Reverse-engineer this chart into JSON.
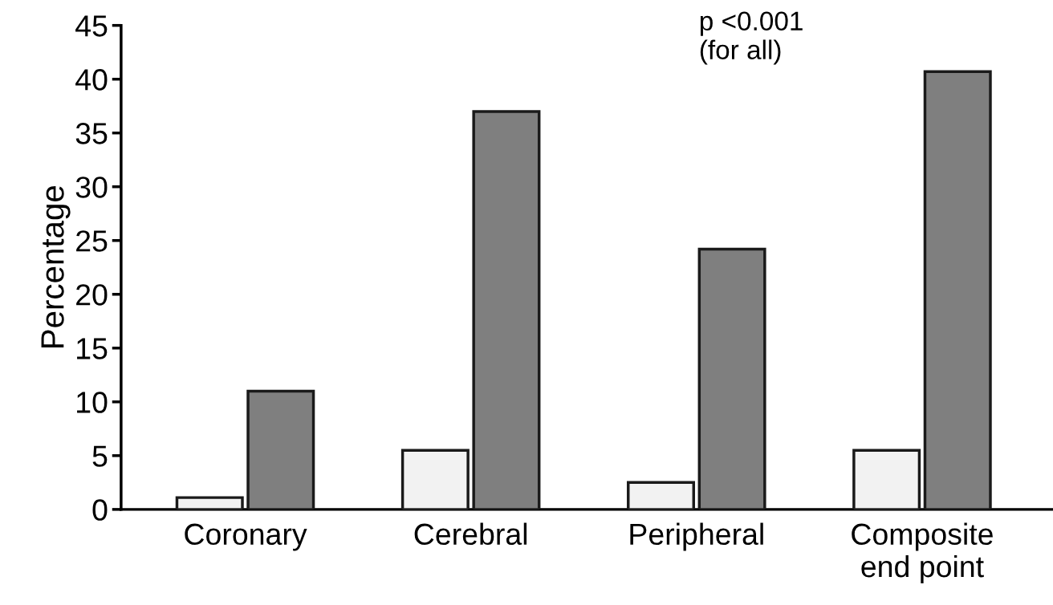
{
  "chart_data": {
    "type": "bar",
    "ylabel": "Percentage",
    "categories": [
      "Coronary",
      "Cerebral",
      "Peripheral",
      "Composite\nend point"
    ],
    "series": [
      {
        "color": "#f2f2f2",
        "values": [
          1.1,
          5.5,
          2.5,
          5.5
        ]
      },
      {
        "color": "#7f7f7f",
        "values": [
          11,
          37,
          24.2,
          40.7
        ]
      }
    ],
    "ylim": [
      0,
      45
    ],
    "yticks": [
      0,
      5,
      10,
      15,
      20,
      25,
      30,
      35,
      40,
      45
    ],
    "grid": false,
    "legend": false,
    "annotations": [
      "p <0.001\n(for all)"
    ]
  }
}
